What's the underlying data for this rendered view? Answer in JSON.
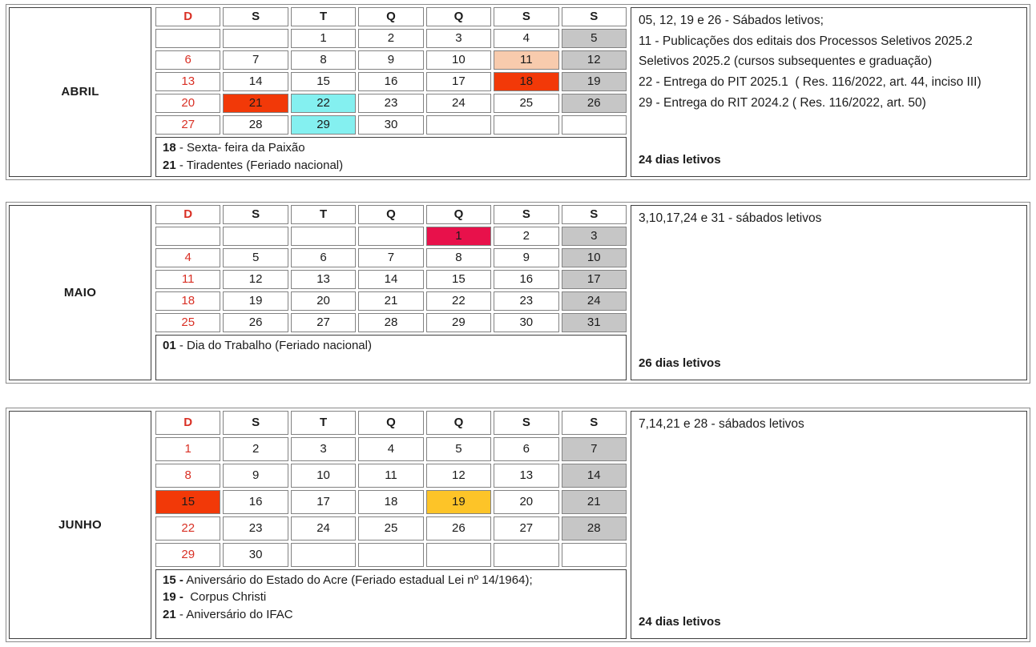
{
  "highlight_colors": {
    "gray": "#C6C6C6",
    "peach": "#F8CBAD",
    "orangered": "#F23908",
    "cyan": "#84F0F0",
    "crimson": "#E8114B",
    "gold": "#FDC428"
  },
  "sunday_color": "#D93025",
  "months": [
    {
      "name": "ABRIL",
      "day_headers": [
        "D",
        "S",
        "T",
        "Q",
        "Q",
        "S",
        "S"
      ],
      "weeks": [
        [
          "",
          "",
          "1",
          "2",
          "3",
          "4",
          "5"
        ],
        [
          "6",
          "7",
          "8",
          "9",
          "10",
          "11",
          "12"
        ],
        [
          "13",
          "14",
          "15",
          "16",
          "17",
          "18",
          "19"
        ],
        [
          "20",
          "21",
          "22",
          "23",
          "24",
          "25",
          "26"
        ],
        [
          "27",
          "28",
          "29",
          "30",
          "",
          "",
          ""
        ]
      ],
      "highlights": {
        "5": "gray",
        "12": "gray",
        "19": "gray",
        "26": "gray",
        "11": "peach",
        "18": "orangered",
        "21": "orangered",
        "22": "cyan",
        "29": "cyan"
      },
      "notes": [
        {
          "bold": "18",
          "rest": " - Sexta- feira da Paixão"
        },
        {
          "bold": "21",
          "rest": " - Tiradentes (Feriado nacional)"
        }
      ],
      "panel_lines": [
        "05, 12, 19 e 26 - Sábados letivos;",
        "11 - Publicações dos editais dos Processos Seletivos 2025.2",
        "Seletivos 2025.2 (cursos subsequentes e graduação)",
        "22 - Entrega do PIT 2025.1  ( Res. 116/2022, art. 44, inciso III)",
        "29 - Entrega do RIT 2024.2 ( Res. 116/2022, art. 50)"
      ],
      "total": "24 dias letivos"
    },
    {
      "name": "MAIO",
      "day_headers": [
        "D",
        "S",
        "T",
        "Q",
        "Q",
        "S",
        "S"
      ],
      "weeks": [
        [
          "",
          "",
          "",
          "",
          "1",
          "2",
          "3"
        ],
        [
          "4",
          "5",
          "6",
          "7",
          "8",
          "9",
          "10"
        ],
        [
          "11",
          "12",
          "13",
          "14",
          "15",
          "16",
          "17"
        ],
        [
          "18",
          "19",
          "20",
          "21",
          "22",
          "23",
          "24"
        ],
        [
          "25",
          "26",
          "27",
          "28",
          "29",
          "30",
          "31"
        ]
      ],
      "highlights": {
        "1": "crimson",
        "3": "gray",
        "10": "gray",
        "17": "gray",
        "24": "gray",
        "31": "gray"
      },
      "notes": [
        {
          "bold": "01",
          "rest": " - Dia do Trabalho (Feriado nacional)"
        }
      ],
      "panel_lines": [
        "3,10,17,24 e 31 - sábados letivos"
      ],
      "total": "26 dias letivos"
    },
    {
      "name": "JUNHO",
      "day_headers": [
        "D",
        "S",
        "T",
        "Q",
        "Q",
        "S",
        "S"
      ],
      "weeks": [
        [
          "1",
          "2",
          "3",
          "4",
          "5",
          "6",
          "7"
        ],
        [
          "8",
          "9",
          "10",
          "11",
          "12",
          "13",
          "14"
        ],
        [
          "15",
          "16",
          "17",
          "18",
          "19",
          "20",
          "21"
        ],
        [
          "22",
          "23",
          "24",
          "25",
          "26",
          "27",
          "28"
        ],
        [
          "29",
          "30",
          "",
          "",
          "",
          "",
          ""
        ]
      ],
      "highlights": {
        "7": "gray",
        "14": "gray",
        "21": "gray",
        "28": "gray",
        "15": "orangered",
        "19": "gold"
      },
      "notes": [
        {
          "bold": "15 -",
          "rest": " Aniversário do Estado do Acre (Feriado estadual Lei nº 14/1964);"
        },
        {
          "bold": "19 -",
          "rest": "  Corpus Christi"
        },
        {
          "bold": "21",
          "rest": " - Aniversário do IFAC"
        }
      ],
      "panel_lines": [
        "7,14,21 e 28 - sábados letivos"
      ],
      "total": "24 dias letivos"
    }
  ]
}
